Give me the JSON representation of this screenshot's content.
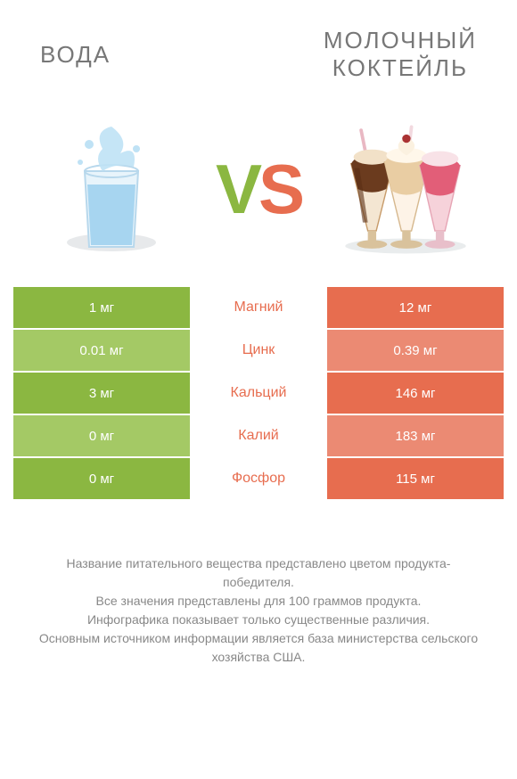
{
  "header": {
    "left_title": "ВОДА",
    "right_title_line1": "МОЛОЧНЫЙ",
    "right_title_line2": "КОКТЕЙЛЬ"
  },
  "vs": {
    "v": "V",
    "s": "S"
  },
  "colors": {
    "left_odd": "#8bb741",
    "left_even": "#a4c965",
    "right_odd": "#e76d4f",
    "right_even": "#eb8a73",
    "mid_winner_left": "#8bb741",
    "mid_winner_right": "#e76d4f"
  },
  "rows": [
    {
      "left": "1 мг",
      "label": "Магний",
      "right": "12 мг",
      "winner": "right",
      "parity": "odd"
    },
    {
      "left": "0.01 мг",
      "label": "Цинк",
      "right": "0.39 мг",
      "winner": "right",
      "parity": "even"
    },
    {
      "left": "3 мг",
      "label": "Кальций",
      "right": "146 мг",
      "winner": "right",
      "parity": "odd"
    },
    {
      "left": "0 мг",
      "label": "Калий",
      "right": "183 мг",
      "winner": "right",
      "parity": "even"
    },
    {
      "left": "0 мг",
      "label": "Фосфор",
      "right": "115 мг",
      "winner": "right",
      "parity": "odd"
    }
  ],
  "footer": {
    "line1": "Название питательного вещества представлено цветом продукта-победителя.",
    "line2": "Все значения представлены для 100 граммов продукта.",
    "line3": "Инфографика показывает только существенные различия.",
    "line4": "Основным источником информации является база министерства сельского хозяйства США."
  }
}
